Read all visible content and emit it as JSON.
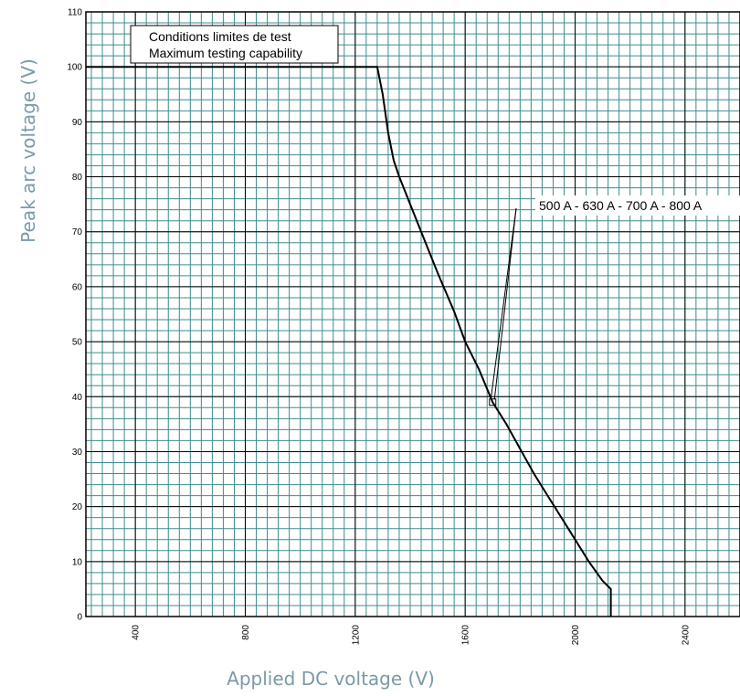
{
  "chart_data": {
    "type": "line",
    "title": "",
    "xlabel": "Applied DC voltage (V)",
    "ylabel": "Peak arc voltage (V)",
    "xlim": [
      220,
      2600
    ],
    "ylim": [
      0,
      110
    ],
    "x_ticks": [
      400,
      800,
      1200,
      1600,
      2000,
      2400
    ],
    "y_ticks": [
      0,
      10,
      20,
      30,
      40,
      50,
      60,
      70,
      80,
      90,
      100,
      110
    ],
    "grid": true,
    "grid_color": "#3f8c8c",
    "major_grid_color": "#000000",
    "series": [
      {
        "x": [
          220,
          1280,
          1300,
          1320,
          1340,
          1360,
          1400,
          1440,
          1500,
          1560,
          1600,
          1650,
          1700,
          1750,
          1800,
          1850,
          1900,
          1950,
          2000,
          2050,
          2100,
          2130,
          2130
        ],
        "y": [
          100,
          100,
          95,
          88,
          83,
          80,
          75,
          70,
          62.5,
          55.5,
          50,
          45,
          39,
          35,
          30.5,
          26,
          22,
          18,
          14,
          10,
          6.5,
          5,
          0
        ],
        "color": "#000000"
      }
    ],
    "annotations": [
      {
        "text": "Conditions limites de test",
        "box": true
      },
      {
        "text": "Maximum testing capability",
        "box": true
      },
      {
        "text": "500 A - 630 A - 700 A - 800 A",
        "pointer_to": [
          1700,
          39
        ]
      }
    ]
  }
}
